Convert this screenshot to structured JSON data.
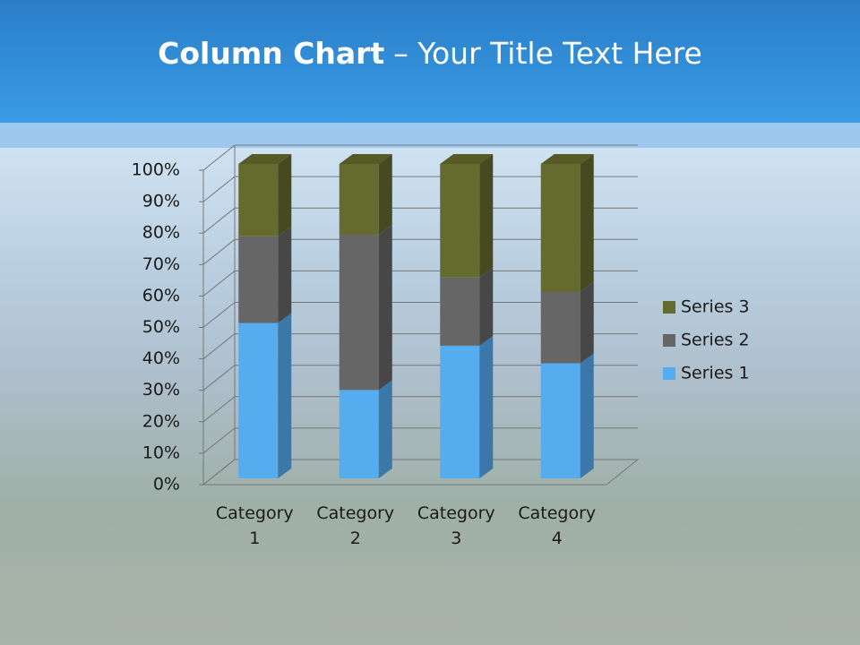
{
  "chart_data": {
    "type": "stacked_bar_3d",
    "title_parts": [
      "Column Chart",
      "– Your Title Text Here"
    ],
    "categories": [
      "Category 1",
      "Category 2",
      "Category 3",
      "Category 4"
    ],
    "series": [
      {
        "name": "Series 1",
        "color": "#55acee",
        "values": [
          49.4,
          28.1,
          42.2,
          36.6
        ]
      },
      {
        "name": "Series 2",
        "color": "#666666",
        "values": [
          27.6,
          49.4,
          21.7,
          22.8
        ]
      },
      {
        "name": "Series 3",
        "color": "#656a2e",
        "values": [
          23.0,
          22.5,
          36.1,
          40.6
        ]
      }
    ],
    "ylim": [
      0,
      100
    ],
    "yticks": [
      {
        "value": 0,
        "label": "0%"
      },
      {
        "value": 10,
        "label": "10%"
      },
      {
        "value": 20,
        "label": "20%"
      },
      {
        "value": 30,
        "label": "30%"
      },
      {
        "value": 40,
        "label": "40%"
      },
      {
        "value": 50,
        "label": "50%"
      },
      {
        "value": 60,
        "label": "60%"
      },
      {
        "value": 70,
        "label": "70%"
      },
      {
        "value": 80,
        "label": "80%"
      },
      {
        "value": 90,
        "label": "90%"
      },
      {
        "value": 100,
        "label": "100%"
      }
    ],
    "grid": true,
    "legend": "right"
  }
}
